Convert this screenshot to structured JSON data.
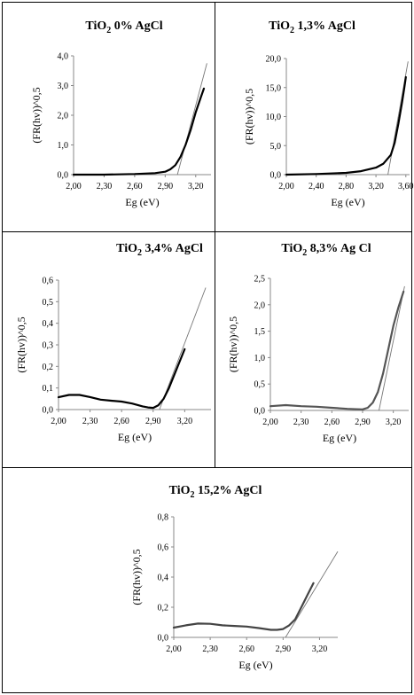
{
  "chart_data": [
    {
      "type": "line",
      "title": {
        "main": "TiO",
        "subscript": "2",
        "rest": " 0% AgCl"
      },
      "xlabel": "Eg (eV)",
      "ylabel": "(FR(hv))^0,5",
      "x_ticks": [
        "2,00",
        "2,30",
        "2,60",
        "2,90",
        "3,20"
      ],
      "y_ticks": [
        "0,0",
        "1,0",
        "2,0",
        "3,0",
        "4,0"
      ],
      "xlim": [
        2.0,
        3.35
      ],
      "ylim": [
        0,
        4.0
      ],
      "series": [
        {
          "x": [
            2.0,
            2.3,
            2.6,
            2.8,
            2.9,
            2.95,
            3.0,
            3.05,
            3.1,
            3.15,
            3.2,
            3.25,
            3.28
          ],
          "y": [
            0.0,
            0.0,
            0.02,
            0.05,
            0.1,
            0.18,
            0.32,
            0.6,
            1.0,
            1.5,
            2.1,
            2.6,
            2.9
          ]
        }
      ],
      "tangent": {
        "x": [
          3.02,
          3.31
        ],
        "y": [
          0.0,
          3.75
        ]
      }
    },
    {
      "type": "line",
      "title": {
        "main": "TiO",
        "subscript": "2",
        "rest": " 1,3% AgCl"
      },
      "xlabel": "Eg (eV)",
      "ylabel": "(FR(hv))^0,5",
      "x_ticks": [
        "2,00",
        "2,40",
        "2,80",
        "3,20",
        "3,60"
      ],
      "y_ticks": [
        "0,0",
        "5,0",
        "10,0",
        "15,0",
        "20,0"
      ],
      "xlim": [
        2.0,
        3.65
      ],
      "ylim": [
        0,
        20.0
      ],
      "series": [
        {
          "x": [
            2.0,
            2.4,
            2.8,
            3.0,
            3.2,
            3.3,
            3.4,
            3.45,
            3.5,
            3.55,
            3.58,
            3.6
          ],
          "y": [
            0.0,
            0.1,
            0.3,
            0.6,
            1.2,
            1.9,
            3.4,
            5.5,
            8.8,
            12.5,
            15.0,
            16.8
          ]
        }
      ],
      "tangent": {
        "x": [
          3.36,
          3.63
        ],
        "y": [
          0.0,
          19.5
        ]
      }
    },
    {
      "type": "line",
      "title": {
        "main": "TiO",
        "subscript": "2",
        "rest": "  3,4% AgCl"
      },
      "xlabel": "Eg (eV)",
      "ylabel": "(FR(hv))^0,5",
      "x_ticks": [
        "2,00",
        "2,30",
        "2,60",
        "2,90",
        "3,20"
      ],
      "y_ticks": [
        "0,0",
        "0,1",
        "0,2",
        "0,3",
        "0,4",
        "0,5",
        "0,6"
      ],
      "xlim": [
        2.0,
        3.45
      ],
      "ylim": [
        0,
        0.6
      ],
      "series": [
        {
          "x": [
            2.0,
            2.1,
            2.2,
            2.3,
            2.4,
            2.5,
            2.6,
            2.7,
            2.8,
            2.85,
            2.9,
            2.95,
            3.0,
            3.05,
            3.1,
            3.15,
            3.2
          ],
          "y": [
            0.057,
            0.068,
            0.068,
            0.058,
            0.046,
            0.041,
            0.037,
            0.028,
            0.015,
            0.01,
            0.008,
            0.02,
            0.05,
            0.1,
            0.16,
            0.22,
            0.28
          ]
        }
      ],
      "tangent": {
        "x": [
          2.96,
          3.4
        ],
        "y": [
          0.0,
          0.565
        ]
      }
    },
    {
      "type": "line",
      "title": {
        "main": "TiO",
        "subscript": "2",
        "rest": "  8,3% Ag Cl"
      },
      "xlabel": "Eg (eV)",
      "ylabel": "(FR(hv))^0,5",
      "x_ticks": [
        "2,00",
        "2,30",
        "2,60",
        "2,90",
        "3,20"
      ],
      "y_ticks": [
        "0,0",
        "0,5",
        "1,0",
        "1,5",
        "2,0",
        "2,5"
      ],
      "xlim": [
        2.0,
        3.35
      ],
      "ylim": [
        0,
        2.5
      ],
      "series": [
        {
          "x": [
            2.0,
            2.15,
            2.3,
            2.45,
            2.6,
            2.75,
            2.9,
            2.95,
            3.0,
            3.05,
            3.1,
            3.15,
            3.2,
            3.25,
            3.3
          ],
          "y": [
            0.08,
            0.1,
            0.08,
            0.07,
            0.05,
            0.03,
            0.02,
            0.05,
            0.15,
            0.35,
            0.7,
            1.15,
            1.6,
            1.95,
            2.25
          ]
        }
      ],
      "tangent": {
        "x": [
          3.06,
          3.31
        ],
        "y": [
          0.0,
          2.35
        ]
      }
    },
    {
      "type": "line",
      "title": {
        "main": "TiO",
        "subscript": "2",
        "rest": "  15,2% AgCl"
      },
      "xlabel": "Eg (eV)",
      "ylabel": "(FR(hv))^0,5",
      "x_ticks": [
        "2,00",
        "2,30",
        "2,60",
        "2,90",
        "3,20"
      ],
      "y_ticks": [
        "0,0",
        "0,2",
        "0,4",
        "0,6",
        "0,8"
      ],
      "xlim": [
        2.0,
        3.35
      ],
      "ylim": [
        0,
        0.8
      ],
      "series": [
        {
          "x": [
            2.0,
            2.1,
            2.2,
            2.3,
            2.4,
            2.5,
            2.6,
            2.7,
            2.8,
            2.85,
            2.9,
            2.95,
            3.0,
            3.05,
            3.1,
            3.15
          ],
          "y": [
            0.065,
            0.08,
            0.092,
            0.09,
            0.08,
            0.076,
            0.072,
            0.062,
            0.05,
            0.05,
            0.055,
            0.08,
            0.12,
            0.2,
            0.28,
            0.36
          ]
        }
      ],
      "tangent": {
        "x": [
          2.92,
          3.35
        ],
        "y": [
          0.0,
          0.57
        ]
      }
    }
  ]
}
